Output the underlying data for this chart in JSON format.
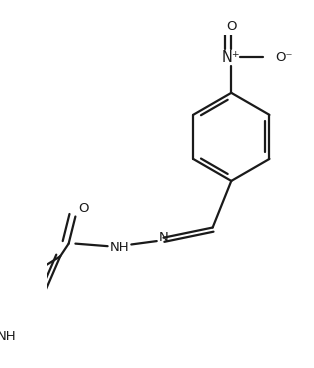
{
  "bg_color": "#ffffff",
  "line_color": "#1a1a1a",
  "line_width": 1.6,
  "font_size": 9.5,
  "figsize": [
    3.14,
    3.68
  ],
  "dpi": 100,
  "xlim": [
    0,
    314
  ],
  "ylim": [
    0,
    368
  ],
  "nitro_N_label": "N⁺",
  "nitro_O_top": "O",
  "nitro_O_right": "O⁻",
  "carbonyl_O": "O",
  "nh_label": "NH",
  "imine_N": "N",
  "indole_NH": "NH"
}
